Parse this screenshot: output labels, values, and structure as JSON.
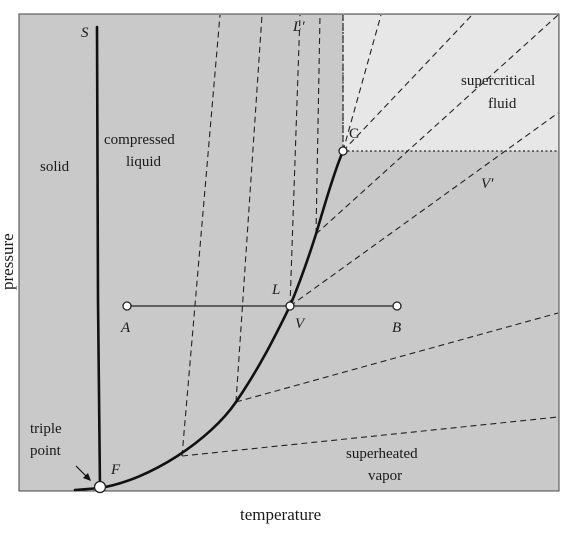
{
  "axes": {
    "x_label": "temperature",
    "y_label": "pressure"
  },
  "regions": {
    "solid": "solid",
    "compressed_liquid_1": "compressed",
    "compressed_liquid_2": "liquid",
    "supercritical_1": "supercritical",
    "supercritical_2": "fluid",
    "superheated_1": "superheated",
    "superheated_2": "vapor"
  },
  "triple_point": {
    "line1": "triple",
    "line2": "point"
  },
  "labels": {
    "S": "S",
    "L_prime": "L′",
    "V_prime": "V′",
    "C": "C",
    "L": "L",
    "V": "V",
    "A": "A",
    "B": "B",
    "F": "F"
  },
  "colors": {
    "region_fill": "#c9c9c9",
    "supercritical_fill": "#e7e7e7",
    "line": "#111111"
  }
}
